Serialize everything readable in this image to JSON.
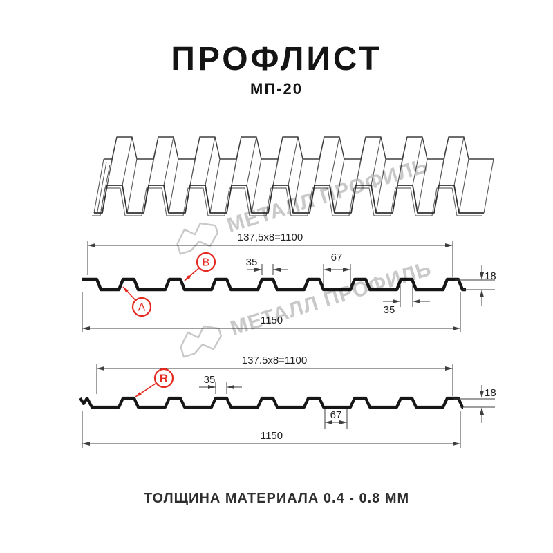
{
  "header": {
    "title": "ПРОФЛИСТ",
    "subtitle": "МП-20"
  },
  "footer": {
    "text": "ТОЛЩИНА МАТЕРИАЛА 0.4 - 0.8 ММ"
  },
  "watermark": {
    "text": "МЕТАЛЛ ПРОФИЛЬ",
    "color": "#c9c9c9"
  },
  "colors": {
    "red": "#e42a20",
    "line": "#3f3f3f",
    "ink": "#161616",
    "dim_text": "#222222",
    "sheet_line": "#3e3e3e"
  },
  "diagram_a": {
    "dims": {
      "working_width": "137,5x8=1100",
      "crest_top_width": "35",
      "valley_width": "67",
      "profile_height": "18",
      "crest_bottom_width": "35",
      "overall_width": "1150"
    },
    "callouts": [
      {
        "letter": "A"
      },
      {
        "letter": "B"
      }
    ]
  },
  "diagram_r": {
    "dims": {
      "working_width": "137.5x8=1100",
      "crest_top_width": "35",
      "valley_width": "67",
      "profile_height": "18",
      "overall_width": "1150"
    },
    "callouts": [
      {
        "letter": "R"
      }
    ]
  }
}
